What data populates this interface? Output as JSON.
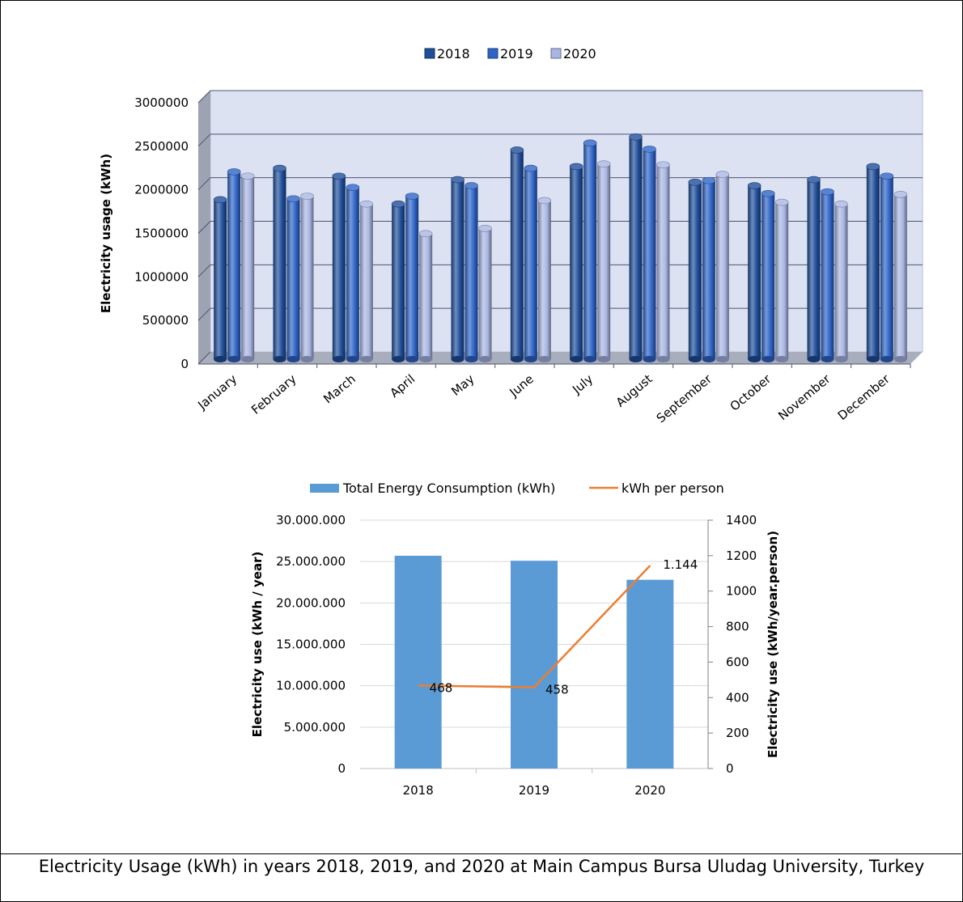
{
  "caption": "Electricity Usage (kWh) in years 2018, 2019, and 2020 at Main Campus Bursa Uludag University, Turkey",
  "chart_data": [
    {
      "type": "bar",
      "title": "",
      "xlabel": "",
      "ylabel": "Electricity usage (kWh)",
      "ylim": [
        0,
        3000000
      ],
      "yticks": [
        "0",
        "500000",
        "1000000",
        "1500000",
        "2000000",
        "2500000",
        "3000000"
      ],
      "legend_position": "top",
      "categories": [
        "January",
        "February",
        "March",
        "April",
        "May",
        "June",
        "July",
        "August",
        "September",
        "October",
        "November",
        "December"
      ],
      "series": [
        {
          "name": "2018",
          "color": "#1f4e9b",
          "values": [
            1850000,
            2210000,
            2120000,
            1800000,
            2080000,
            2420000,
            2230000,
            2570000,
            2050000,
            2010000,
            2080000,
            2230000
          ]
        },
        {
          "name": "2019",
          "color": "#2e64c8",
          "values": [
            2170000,
            1860000,
            1990000,
            1890000,
            2010000,
            2210000,
            2500000,
            2430000,
            2070000,
            1920000,
            1940000,
            2120000
          ]
        },
        {
          "name": "2020",
          "color": "#a9b6e3",
          "values": [
            2120000,
            1890000,
            1800000,
            1460000,
            1520000,
            1840000,
            2260000,
            2250000,
            2140000,
            1820000,
            1800000,
            1910000
          ]
        }
      ]
    },
    {
      "type": "bar",
      "title": "",
      "xlabel": "",
      "ylabel": "Electricity use (kWh / year)",
      "ylabel_right": "Electricity use (kWh/year.person)",
      "ylim": [
        0,
        30000000
      ],
      "ylim_right": [
        0,
        1400
      ],
      "yticks": [
        "0",
        "5.000.000",
        "10.000.000",
        "15.000.000",
        "20.000.000",
        "25.000.000",
        "30.000.000"
      ],
      "yticks_right": [
        "0",
        "200",
        "400",
        "600",
        "800",
        "1000",
        "1200",
        "1400"
      ],
      "legend_position": "top",
      "categories": [
        "2018",
        "2019",
        "2020"
      ],
      "series": [
        {
          "name": "Total Energy Consumption (kWh)",
          "kind": "bar",
          "axis": "left",
          "color": "#5b9bd5",
          "values": [
            25700000,
            25100000,
            22800000
          ]
        },
        {
          "name": "kWh per person",
          "kind": "line",
          "axis": "right",
          "color": "#ed7d31",
          "values": [
            468,
            458,
            1144
          ],
          "labels": [
            "468",
            "458",
            "1.144"
          ]
        }
      ]
    }
  ]
}
